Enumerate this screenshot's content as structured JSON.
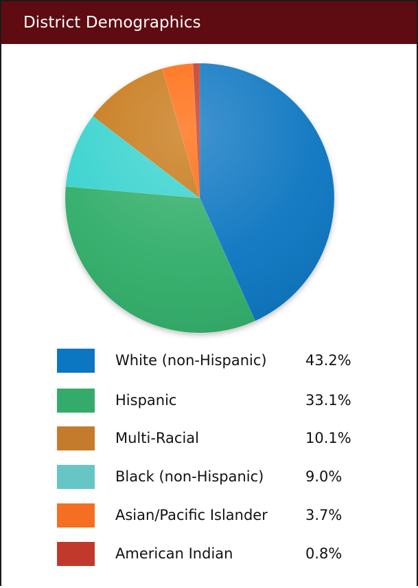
{
  "header": {
    "title": "District Demographics"
  },
  "chart_data": {
    "type": "pie",
    "title": "District Demographics",
    "categories": [
      "White (non-Hispanic)",
      "Hispanic",
      "Black (non-Hispanic)",
      "Multi-Racial",
      "Asian/Pacific Islander",
      "American Indian"
    ],
    "values": [
      43.2,
      33.1,
      9.0,
      10.1,
      3.7,
      0.8
    ],
    "colors": [
      "#0b76c1",
      "#32ae6a",
      "#37d3cf",
      "#c77812",
      "#ff6a0a",
      "#c0392b"
    ],
    "unit": "%"
  },
  "legend": {
    "items": [
      {
        "label": "White (non-Hispanic)",
        "value": "43.2%",
        "color": "#0b76c1"
      },
      {
        "label": "Hispanic",
        "value": "33.1%",
        "color": "#35ab6b"
      },
      {
        "label": "Multi-Racial",
        "value": "10.1%",
        "color": "#c47c2c"
      },
      {
        "label": "Black (non-Hispanic)",
        "value": "9.0%",
        "color": "#66c6c6"
      },
      {
        "label": "Asian/Pacific Islander",
        "value": "3.7%",
        "color": "#f46f22"
      },
      {
        "label": "American Indian",
        "value": "0.8%",
        "color": "#c0392b"
      }
    ]
  }
}
